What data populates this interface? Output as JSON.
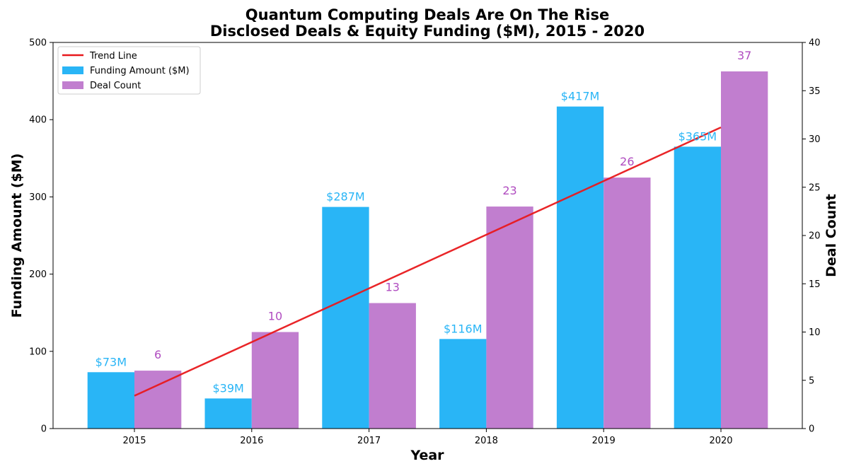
{
  "chart_data": {
    "type": "bar",
    "title": "Quantum Computing Deals Are On The Rise",
    "subtitle": "Disclosed Deals & Equity Funding ($M), 2015 - 2020",
    "xlabel": "Year",
    "ylabel": "Funding Amount ($M)",
    "y2label": "Deal Count",
    "categories": [
      "2015",
      "2016",
      "2017",
      "2018",
      "2019",
      "2020"
    ],
    "ylim": [
      0,
      500
    ],
    "y2lim": [
      0,
      40
    ],
    "yticks": [
      "0",
      "100",
      "200",
      "300",
      "400",
      "500"
    ],
    "y2ticks": [
      "0",
      "5",
      "10",
      "15",
      "20",
      "25",
      "30",
      "35",
      "40"
    ],
    "series": [
      {
        "name": "Funding Amount ($M)",
        "axis": "left",
        "color": "#29B5F6",
        "values": [
          73,
          39,
          287,
          116,
          417,
          365
        ],
        "labels": [
          "$73M",
          "$39M",
          "$287M",
          "$116M",
          "$417M",
          "$365M"
        ]
      },
      {
        "name": "Deal Count",
        "axis": "right",
        "color": "#C17ECF",
        "label_color": "#B04CC0",
        "values": [
          6,
          10,
          13,
          23,
          26,
          37
        ],
        "labels": [
          "6",
          "10",
          "13",
          "23",
          "26",
          "37"
        ]
      }
    ],
    "trend_line": {
      "name": "Trend Line",
      "axis": "right",
      "color": "#E8191C",
      "start": {
        "x": "2015",
        "y": 3.4
      },
      "end": {
        "x": "2020",
        "y": 31.2
      }
    },
    "legend": {
      "placement": "top-left",
      "entries": [
        "Trend Line",
        "Funding Amount ($M)",
        "Deal Count"
      ]
    },
    "grid": false
  }
}
